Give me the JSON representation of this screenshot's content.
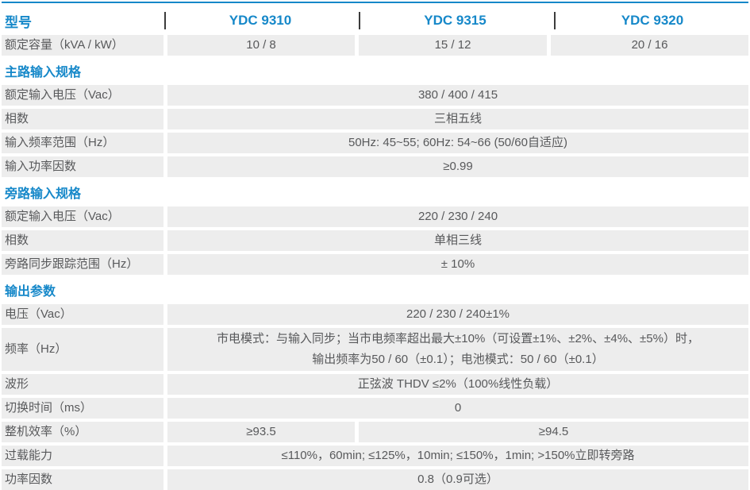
{
  "theme": {
    "accent": "#1688c9",
    "row_bg": "#ededed",
    "text": "#58595b",
    "divider": "#3c3c3c"
  },
  "header": {
    "label": "型号",
    "models": [
      "YDC 9310",
      "YDC 9315",
      "YDC 9320"
    ]
  },
  "capacity_row": {
    "label": "额定容量（kVA / kW）",
    "values": [
      "10 / 8",
      "15 / 12",
      "20 / 16"
    ]
  },
  "sections": [
    {
      "title": "主路输入规格",
      "rows": [
        {
          "label": "额定输入电压（Vac）",
          "value": "380 / 400 / 415"
        },
        {
          "label": "相数",
          "value": "三相五线"
        },
        {
          "label": "输入频率范围（Hz）",
          "value": "50Hz: 45~55; 60Hz: 54~66 (50/60自适应)"
        },
        {
          "label": "输入功率因数",
          "value": "≥0.99"
        }
      ]
    },
    {
      "title": "旁路输入规格",
      "rows": [
        {
          "label": "额定输入电压（Vac）",
          "value": "220 / 230 / 240"
        },
        {
          "label": "相数",
          "value": "单相三线"
        },
        {
          "label": "旁路同步跟踪范围（Hz）",
          "value": "± 10%"
        }
      ]
    },
    {
      "title": "输出参数",
      "rows": [
        {
          "label": "电压（Vac）",
          "value": "220 / 230 / 240±1%"
        },
        {
          "label": "频率（Hz）",
          "lines": [
            "市电模式：与输入同步；当市电频率超出最大±10%（可设置±1%、±2%、±4%、±5%）时，",
            "输出频率为50 / 60（±0.1）；电池模式：50 / 60（±0.1）"
          ]
        },
        {
          "label": "波形",
          "value": "正弦波 THDV ≤2%（100%线性负载）"
        },
        {
          "label": "切换时间（ms）",
          "value": "0"
        },
        {
          "label": "整机效率（%）",
          "values": [
            "≥93.5",
            "≥94.5"
          ]
        },
        {
          "label": "过载能力",
          "value": "≤110%，60min; ≤125%，10min; ≤150%，1min; >150%立即转旁路"
        },
        {
          "label": "功率因数",
          "value": "0.8（0.9可选）"
        }
      ]
    }
  ]
}
